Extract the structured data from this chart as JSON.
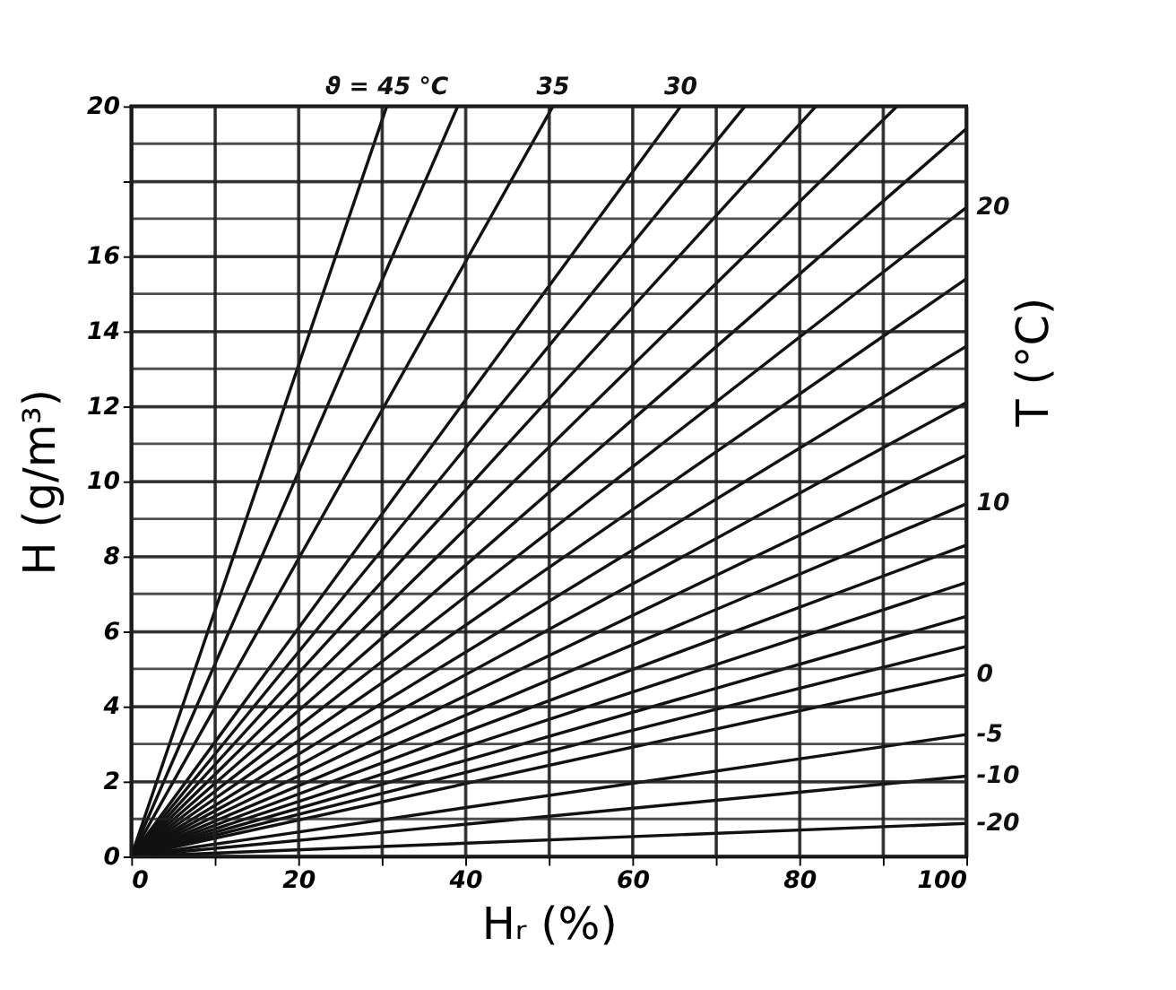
{
  "chart_data": {
    "type": "line",
    "xlabel": "Hᵣ (%)",
    "ylabel": "H (g/m³)",
    "y2label": "T (°C)",
    "xlim": [
      0,
      100
    ],
    "ylim": [
      0,
      20
    ],
    "xticks": [
      0,
      {
        "value": 10,
        "label": null
      },
      20,
      {
        "value": 30,
        "label": null
      },
      40,
      {
        "value": 50,
        "label": null
      },
      60,
      {
        "value": 70,
        "label": null
      },
      80,
      {
        "value": 90,
        "label": null
      },
      100
    ],
    "yticks": [
      0,
      {
        "value": 1,
        "label": null
      },
      2,
      {
        "value": 3,
        "label": null
      },
      4,
      {
        "value": 5,
        "label": null
      },
      6,
      {
        "value": 7,
        "label": null
      },
      8,
      {
        "value": 9,
        "label": null
      },
      10,
      {
        "value": 11,
        "label": null
      },
      12,
      {
        "value": 13,
        "label": null
      },
      14,
      {
        "value": 15,
        "label": null
      },
      16,
      {
        "value": 17,
        "label": null
      },
      {
        "value": 18,
        "label": null
      },
      {
        "value": 19,
        "label": null
      },
      20
    ],
    "grid": true,
    "marker": "none",
    "line_style": "solid",
    "legend": false,
    "series": [
      {
        "name": "ϑ = 45 °C",
        "color": "#111111",
        "x": [
          0,
          30.6
        ],
        "values": [
          0,
          20
        ]
      },
      {
        "color": "#111111",
        "x": [
          0,
          39.1
        ],
        "values": [
          0,
          20
        ]
      },
      {
        "name": "35",
        "color": "#111111",
        "x": [
          0,
          50.5
        ],
        "values": [
          0,
          20
        ]
      },
      {
        "name": "30",
        "color": "#111111",
        "x": [
          0,
          65.8
        ],
        "values": [
          0,
          20
        ]
      },
      {
        "color": "#111111",
        "x": [
          0,
          73.5
        ],
        "values": [
          0,
          20
        ]
      },
      {
        "color": "#111111",
        "x": [
          0,
          82
        ],
        "values": [
          0,
          20
        ]
      },
      {
        "color": "#111111",
        "x": [
          0,
          91.7
        ],
        "values": [
          0,
          20
        ]
      },
      {
        "color": "#111111",
        "x": [
          0,
          100
        ],
        "values": [
          0,
          19.4
        ]
      },
      {
        "name": "20",
        "color": "#111111",
        "x": [
          0,
          100
        ],
        "values": [
          0,
          17.3
        ]
      },
      {
        "color": "#111111",
        "x": [
          0,
          100
        ],
        "values": [
          0,
          15.4
        ]
      },
      {
        "color": "#111111",
        "x": [
          0,
          100
        ],
        "values": [
          0,
          13.6
        ]
      },
      {
        "color": "#111111",
        "x": [
          0,
          100
        ],
        "values": [
          0,
          12.1
        ]
      },
      {
        "color": "#111111",
        "x": [
          0,
          100
        ],
        "values": [
          0,
          10.7
        ]
      },
      {
        "name": "10",
        "color": "#111111",
        "x": [
          0,
          100
        ],
        "values": [
          0,
          9.4
        ]
      },
      {
        "color": "#111111",
        "x": [
          0,
          100
        ],
        "values": [
          0,
          8.3
        ]
      },
      {
        "color": "#111111",
        "x": [
          0,
          100
        ],
        "values": [
          0,
          7.3
        ]
      },
      {
        "color": "#111111",
        "x": [
          0,
          100
        ],
        "values": [
          0,
          6.4
        ]
      },
      {
        "color": "#111111",
        "x": [
          0,
          100
        ],
        "values": [
          0,
          5.6
        ]
      },
      {
        "name": "0",
        "color": "#111111",
        "x": [
          0,
          100
        ],
        "values": [
          0,
          4.85
        ]
      },
      {
        "name": "-5",
        "color": "#111111",
        "x": [
          0,
          100
        ],
        "values": [
          0,
          3.25
        ]
      },
      {
        "name": "-10",
        "color": "#111111",
        "x": [
          0,
          100
        ],
        "values": [
          0,
          2.14
        ]
      },
      {
        "name": "-20",
        "color": "#111111",
        "x": [
          0,
          100
        ],
        "values": [
          0,
          0.88
        ]
      }
    ]
  }
}
